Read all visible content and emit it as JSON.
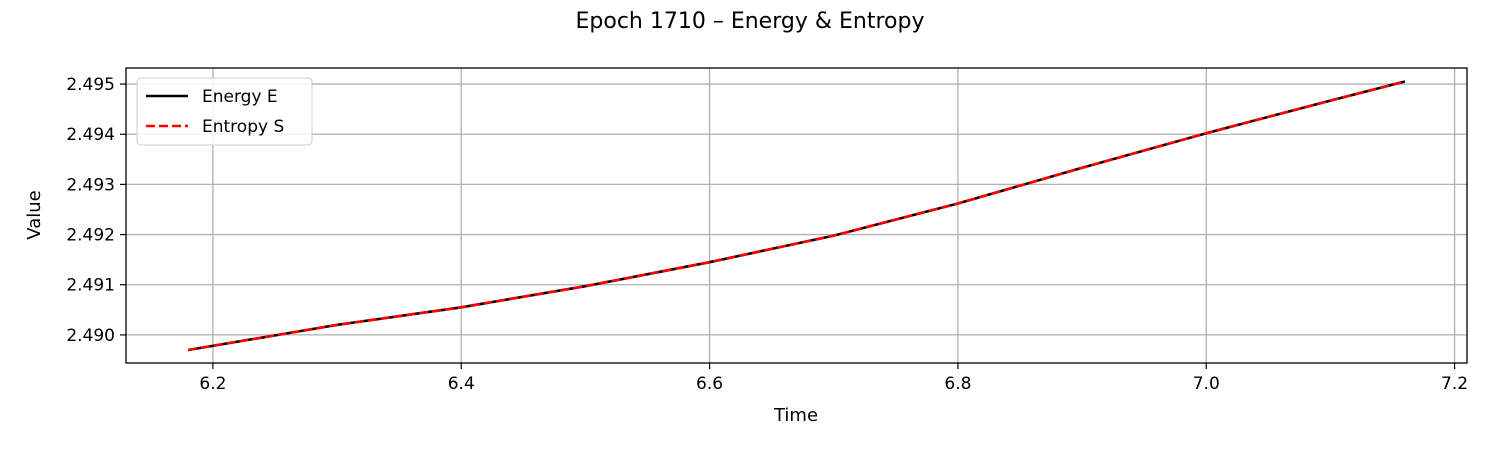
{
  "chart_data": {
    "type": "line",
    "title": "Epoch 1710 – Energy & Entropy",
    "xlabel": "Time",
    "ylabel": "Value",
    "xlim": [
      6.13,
      7.21
    ],
    "ylim": [
      2.48944,
      2.49532
    ],
    "xticks": [
      6.2,
      6.4,
      6.6,
      6.8,
      7.0,
      7.2
    ],
    "xtick_labels": [
      "6.2",
      "6.4",
      "6.6",
      "6.8",
      "7.0",
      "7.2"
    ],
    "yticks": [
      2.49,
      2.491,
      2.492,
      2.493,
      2.494,
      2.495
    ],
    "ytick_labels": [
      "2.490",
      "2.491",
      "2.492",
      "2.493",
      "2.494",
      "2.495"
    ],
    "grid": true,
    "legend": "top-left",
    "series": [
      {
        "name": "Energy E",
        "color": "#000000",
        "style": "solid",
        "x": [
          6.18,
          6.3,
          6.4,
          6.5,
          6.6,
          6.7,
          6.8,
          6.9,
          7.0,
          7.1,
          7.16
        ],
        "y": [
          2.4897,
          2.4902,
          2.49055,
          2.49097,
          2.49145,
          2.49198,
          2.49262,
          2.49333,
          2.49402,
          2.49467,
          2.49505
        ]
      },
      {
        "name": "Entropy S",
        "color": "#ff0000",
        "style": "dashed",
        "x": [
          6.18,
          6.3,
          6.4,
          6.5,
          6.6,
          6.7,
          6.8,
          6.9,
          7.0,
          7.1,
          7.16
        ],
        "y": [
          2.4897,
          2.4902,
          2.49055,
          2.49097,
          2.49145,
          2.49198,
          2.49262,
          2.49333,
          2.49402,
          2.49467,
          2.49505
        ]
      }
    ]
  }
}
